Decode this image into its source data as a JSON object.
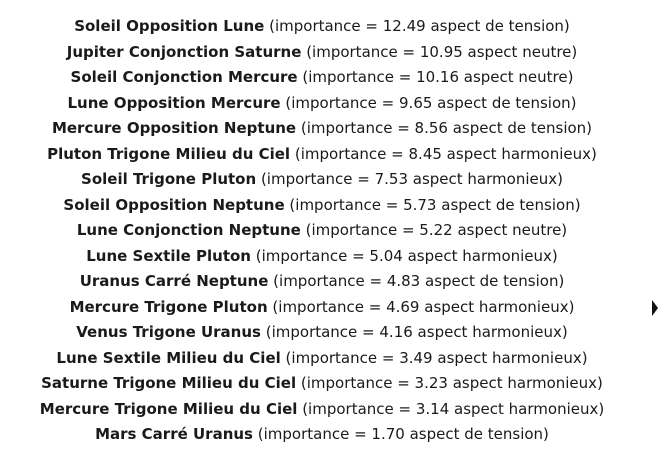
{
  "aspects": [
    {
      "name": "Soleil Opposition Lune",
      "detail": "(importance = 12.49 aspect de tension)"
    },
    {
      "name": "Jupiter Conjonction Saturne",
      "detail": "(importance = 10.95 aspect neutre)"
    },
    {
      "name": "Soleil Conjonction Mercure",
      "detail": "(importance = 10.16 aspect neutre)"
    },
    {
      "name": "Lune Opposition Mercure",
      "detail": "(importance = 9.65 aspect de tension)"
    },
    {
      "name": "Mercure Opposition Neptune",
      "detail": "(importance = 8.56 aspect de tension)"
    },
    {
      "name": "Pluton Trigone Milieu du Ciel",
      "detail": "(importance = 8.45 aspect harmonieux)"
    },
    {
      "name": "Soleil Trigone Pluton",
      "detail": "(importance = 7.53 aspect harmonieux)"
    },
    {
      "name": "Soleil Opposition Neptune",
      "detail": "(importance = 5.73 aspect de tension)"
    },
    {
      "name": "Lune Conjonction Neptune",
      "detail": "(importance = 5.22 aspect neutre)"
    },
    {
      "name": "Lune Sextile Pluton",
      "detail": "(importance = 5.04 aspect harmonieux)"
    },
    {
      "name": "Uranus Carré Neptune",
      "detail": "(importance = 4.83 aspect de tension)"
    },
    {
      "name": "Mercure Trigone Pluton",
      "detail": "(importance = 4.69 aspect harmonieux)"
    },
    {
      "name": "Venus Trigone Uranus",
      "detail": "(importance = 4.16 aspect harmonieux)"
    },
    {
      "name": "Lune Sextile Milieu du Ciel",
      "detail": "(importance = 3.49 aspect harmonieux)"
    },
    {
      "name": "Saturne Trigone Milieu du Ciel",
      "detail": "(importance = 3.23 aspect harmonieux)"
    },
    {
      "name": "Mercure Trigone Milieu du Ciel",
      "detail": "(importance = 3.14 aspect harmonieux)"
    },
    {
      "name": "Mars Carré Uranus",
      "detail": "(importance = 1.70 aspect de tension)"
    }
  ],
  "icons": {
    "scroll_caret": "caret-right-icon"
  },
  "colors": {
    "text": "#1a1a1a",
    "background": "#ffffff"
  }
}
